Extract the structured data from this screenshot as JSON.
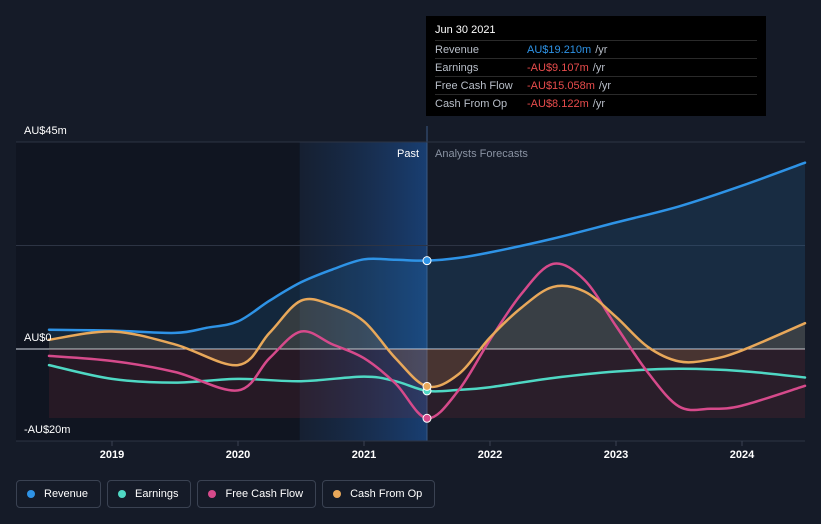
{
  "tooltip": {
    "date": "Jun 30 2021",
    "rows": [
      {
        "name": "Revenue",
        "value": "AU$19.210m",
        "unit": "/yr",
        "color": "#2e93e6"
      },
      {
        "name": "Earnings",
        "value": "-AU$9.107m",
        "unit": "/yr",
        "color": "#e84c4c"
      },
      {
        "name": "Free Cash Flow",
        "value": "-AU$15.058m",
        "unit": "/yr",
        "color": "#e84c4c"
      },
      {
        "name": "Cash From Op",
        "value": "-AU$8.122m",
        "unit": "/yr",
        "color": "#e84c4c"
      }
    ]
  },
  "legend": [
    {
      "name": "Revenue",
      "color": "#2e93e6"
    },
    {
      "name": "Earnings",
      "color": "#4fd8c4"
    },
    {
      "name": "Free Cash Flow",
      "color": "#d64a8b"
    },
    {
      "name": "Cash From Op",
      "color": "#e8a85a"
    }
  ],
  "chart_data": {
    "type": "line",
    "xlim": [
      2018.5,
      2024.5
    ],
    "ylim": [
      -20,
      45
    ],
    "y_tick_labels": [
      {
        "value": 45,
        "label": "AU$45m"
      },
      {
        "value": 0,
        "label": "AU$0"
      },
      {
        "value": -20,
        "label": "-AU$20m"
      }
    ],
    "x_tick_labels": [
      {
        "value": 2019,
        "label": "2019"
      },
      {
        "value": 2020,
        "label": "2020"
      },
      {
        "value": 2021,
        "label": "2021"
      },
      {
        "value": 2022,
        "label": "2022"
      },
      {
        "value": 2023,
        "label": "2023"
      },
      {
        "value": 2024,
        "label": "2024"
      }
    ],
    "past_label": "Past",
    "forecast_label": "Analysts Forecasts",
    "past_end": 2021.5,
    "highlight_start": 2020.5,
    "series": [
      {
        "name": "Revenue",
        "color": "#2e93e6",
        "fill": true,
        "points": [
          [
            2018.5,
            4.2
          ],
          [
            2019.0,
            4.0
          ],
          [
            2019.5,
            3.5
          ],
          [
            2019.75,
            4.6
          ],
          [
            2020.0,
            6.0
          ],
          [
            2020.25,
            10.5
          ],
          [
            2020.5,
            14.5
          ],
          [
            2020.75,
            17.3
          ],
          [
            2021.0,
            19.5
          ],
          [
            2021.25,
            19.4
          ],
          [
            2021.5,
            19.21
          ],
          [
            2021.75,
            19.8
          ],
          [
            2022.0,
            21.0
          ],
          [
            2022.5,
            24.0
          ],
          [
            2023.0,
            27.5
          ],
          [
            2023.5,
            31.0
          ],
          [
            2024.0,
            35.5
          ],
          [
            2024.5,
            40.5
          ]
        ]
      },
      {
        "name": "Earnings",
        "color": "#4fd8c4",
        "fill": false,
        "points": [
          [
            2018.5,
            -3.5
          ],
          [
            2019.0,
            -6.5
          ],
          [
            2019.5,
            -7.3
          ],
          [
            2020.0,
            -6.5
          ],
          [
            2020.5,
            -7.0
          ],
          [
            2021.0,
            -6.0
          ],
          [
            2021.25,
            -7.0
          ],
          [
            2021.5,
            -9.107
          ],
          [
            2021.75,
            -8.9
          ],
          [
            2022.0,
            -8.3
          ],
          [
            2022.5,
            -6.3
          ],
          [
            2023.0,
            -4.9
          ],
          [
            2023.5,
            -4.3
          ],
          [
            2024.0,
            -4.8
          ],
          [
            2024.5,
            -6.2
          ]
        ]
      },
      {
        "name": "Free Cash Flow",
        "color": "#d64a8b",
        "fill": false,
        "points": [
          [
            2018.5,
            -1.5
          ],
          [
            2019.0,
            -2.6
          ],
          [
            2019.5,
            -5.0
          ],
          [
            2020.0,
            -9.0
          ],
          [
            2020.25,
            -2.0
          ],
          [
            2020.5,
            3.8
          ],
          [
            2020.75,
            1.0
          ],
          [
            2021.0,
            -2.0
          ],
          [
            2021.25,
            -7.5
          ],
          [
            2021.5,
            -15.058
          ],
          [
            2021.75,
            -9.0
          ],
          [
            2022.0,
            2.0
          ],
          [
            2022.25,
            12.0
          ],
          [
            2022.5,
            18.5
          ],
          [
            2022.75,
            15.0
          ],
          [
            2023.0,
            5.0
          ],
          [
            2023.25,
            -5.0
          ],
          [
            2023.5,
            -12.5
          ],
          [
            2023.75,
            -13.0
          ],
          [
            2024.0,
            -12.3
          ],
          [
            2024.5,
            -8.0
          ]
        ]
      },
      {
        "name": "Cash From Op",
        "color": "#e8a85a",
        "fill": true,
        "points": [
          [
            2018.5,
            2.0
          ],
          [
            2019.0,
            3.8
          ],
          [
            2019.5,
            1.0
          ],
          [
            2020.0,
            -3.5
          ],
          [
            2020.25,
            3.5
          ],
          [
            2020.5,
            10.5
          ],
          [
            2020.75,
            9.5
          ],
          [
            2021.0,
            6.0
          ],
          [
            2021.25,
            -2.0
          ],
          [
            2021.5,
            -8.122
          ],
          [
            2021.75,
            -5.5
          ],
          [
            2022.0,
            2.5
          ],
          [
            2022.25,
            9.0
          ],
          [
            2022.5,
            13.5
          ],
          [
            2022.75,
            12.5
          ],
          [
            2023.0,
            7.0
          ],
          [
            2023.25,
            0.5
          ],
          [
            2023.5,
            -2.7
          ],
          [
            2023.75,
            -2.3
          ],
          [
            2024.0,
            -0.3
          ],
          [
            2024.5,
            5.6
          ]
        ]
      }
    ]
  }
}
